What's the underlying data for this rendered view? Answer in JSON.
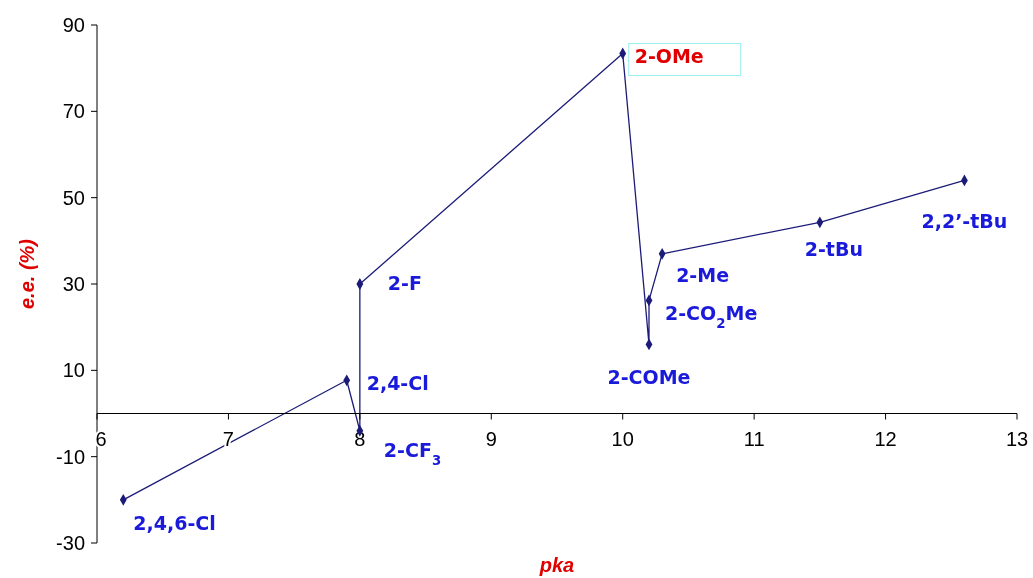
{
  "chart_data": {
    "type": "line",
    "xlabel": "pka",
    "ylabel": "e.e. (%)",
    "x": [
      6.2,
      7.9,
      8.0,
      8.0,
      10.0,
      10.2,
      10.2,
      10.3,
      11.5,
      12.6
    ],
    "series": [
      {
        "color": "#1c1c78",
        "values": [
          -20,
          7.7,
          -4,
          30,
          83.4,
          16,
          26.2,
          37,
          44.3,
          54
        ]
      }
    ],
    "xlim": [
      6,
      13
    ],
    "xticks": [
      6,
      7,
      8,
      9,
      10,
      11,
      12,
      13
    ],
    "ylim": [
      -30,
      90
    ],
    "yticks": [
      -30,
      -10,
      10,
      30,
      50,
      70,
      90
    ],
    "grid": false,
    "marker": "diamond",
    "line_style": "solid",
    "annotations": [
      {
        "text": "2,4,6-Cl",
        "x": 6.2,
        "y": -20
      },
      {
        "text": "2,4-Cl",
        "x": 7.9,
        "y": 7.7
      },
      {
        "text": "2-CF$_{3}$",
        "x": 8.0,
        "y": -4
      },
      {
        "text": "2-F",
        "x": 8.0,
        "y": 30
      },
      {
        "text": "2-OMe",
        "x": 10.0,
        "y": 83.4
      },
      {
        "text": "2-COMe",
        "x": 10.2,
        "y": 16
      },
      {
        "text": "2-CO$_{2}$Me",
        "x": 10.2,
        "y": 26.2
      },
      {
        "text": "2-Me",
        "x": 10.3,
        "y": 37
      },
      {
        "text": "2-tBu",
        "x": 11.5,
        "y": 44.3
      },
      {
        "text": "2,2’-tBu",
        "x": 12.6,
        "y": 54
      }
    ]
  }
}
